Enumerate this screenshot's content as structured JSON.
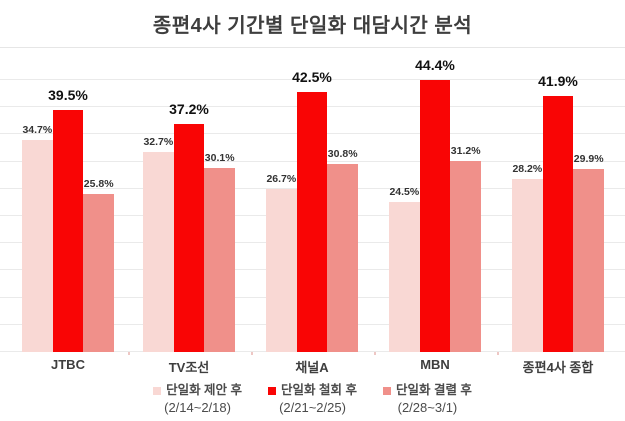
{
  "chart_data": {
    "type": "bar",
    "title": "종편4사 기간별 단일화 대담시간 분석",
    "categories": [
      "JTBC",
      "TV조선",
      "채널A",
      "MBN",
      "종편4사 종합"
    ],
    "series": [
      {
        "name": "단일화 제안 후",
        "period": "(2/14~2/18)",
        "color": "#f9d8d4",
        "emphasis": false,
        "values": [
          34.7,
          32.7,
          26.7,
          24.5,
          28.2
        ],
        "labels": [
          "34.7%",
          "32.7%",
          "26.7%",
          "24.5%",
          "28.2%"
        ]
      },
      {
        "name": "단일화 철회 후",
        "period": "(2/21~2/25)",
        "color": "#f90505",
        "emphasis": true,
        "values": [
          39.5,
          37.2,
          42.5,
          44.4,
          41.9
        ],
        "labels": [
          "39.5%",
          "37.2%",
          "42.5%",
          "44.4%",
          "41.9%"
        ]
      },
      {
        "name": "단일화 결렬 후",
        "period": "(2/28~3/1)",
        "color": "#f0908a",
        "emphasis": false,
        "values": [
          25.8,
          30.1,
          30.8,
          31.2,
          29.9
        ],
        "labels": [
          "25.8%",
          "30.1%",
          "30.8%",
          "31.2%",
          "29.9%"
        ]
      }
    ],
    "value_suffix": "%",
    "xlabel": "",
    "ylabel": "",
    "ylim": [
      0,
      49
    ],
    "grid": true,
    "legend_position": "bottom"
  }
}
